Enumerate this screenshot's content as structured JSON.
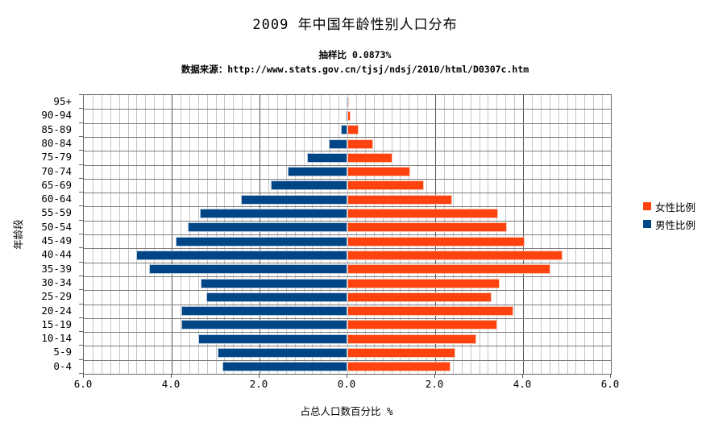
{
  "title": "2009 年中国年龄性别人口分布",
  "subtitle": "抽样比  0.0873%",
  "source": "数据来源：http://www.stats.gov.cn/tjsj/ndsj/2010/html/D0307c.htm",
  "legend": {
    "items": [
      {
        "label": "女性比例",
        "color": "#FF420E"
      },
      {
        "label": "男性比例",
        "color": "#004586"
      }
    ]
  },
  "chart_data": {
    "type": "bar",
    "variant": "population-pyramid",
    "title": "2009 年中国年龄性别人口分布",
    "xlabel": "占总人口数百分比  %",
    "ylabel": "年龄段",
    "x_ticks": [
      "6.0",
      "4.0",
      "2.0",
      "0.0",
      "2.0",
      "4.0",
      "6.0"
    ],
    "x_tick_values": [
      -6,
      -4,
      -2,
      0,
      2,
      4,
      6
    ],
    "xlim": [
      -6,
      6
    ],
    "x_minor_step": 0.2,
    "x_major_step": 2.0,
    "grid": "both",
    "legend_position": "right",
    "categories": [
      "95+",
      "90-94",
      "85-89",
      "80-84",
      "75-79",
      "70-74",
      "65-69",
      "60-64",
      "55-59",
      "50-54",
      "45-49",
      "40-44",
      "35-39",
      "30-34",
      "25-29",
      "20-24",
      "15-19",
      "10-14",
      "5-9",
      "0-4"
    ],
    "series": [
      {
        "name": "女性比例",
        "side": "right",
        "color": "#FF420E",
        "values": [
          0.04,
          0.07,
          0.26,
          0.59,
          1.02,
          1.44,
          1.74,
          2.38,
          3.43,
          3.64,
          4.03,
          4.89,
          4.63,
          3.46,
          3.28,
          3.78,
          3.41,
          2.93,
          2.45,
          2.34
        ]
      },
      {
        "name": "男性比例",
        "side": "left",
        "color": "#004586",
        "values": [
          0.01,
          0.04,
          0.14,
          0.42,
          0.92,
          1.36,
          1.75,
          2.42,
          3.36,
          3.63,
          3.9,
          4.8,
          4.51,
          3.34,
          3.22,
          3.78,
          3.78,
          3.4,
          2.96,
          2.84
        ]
      }
    ]
  }
}
